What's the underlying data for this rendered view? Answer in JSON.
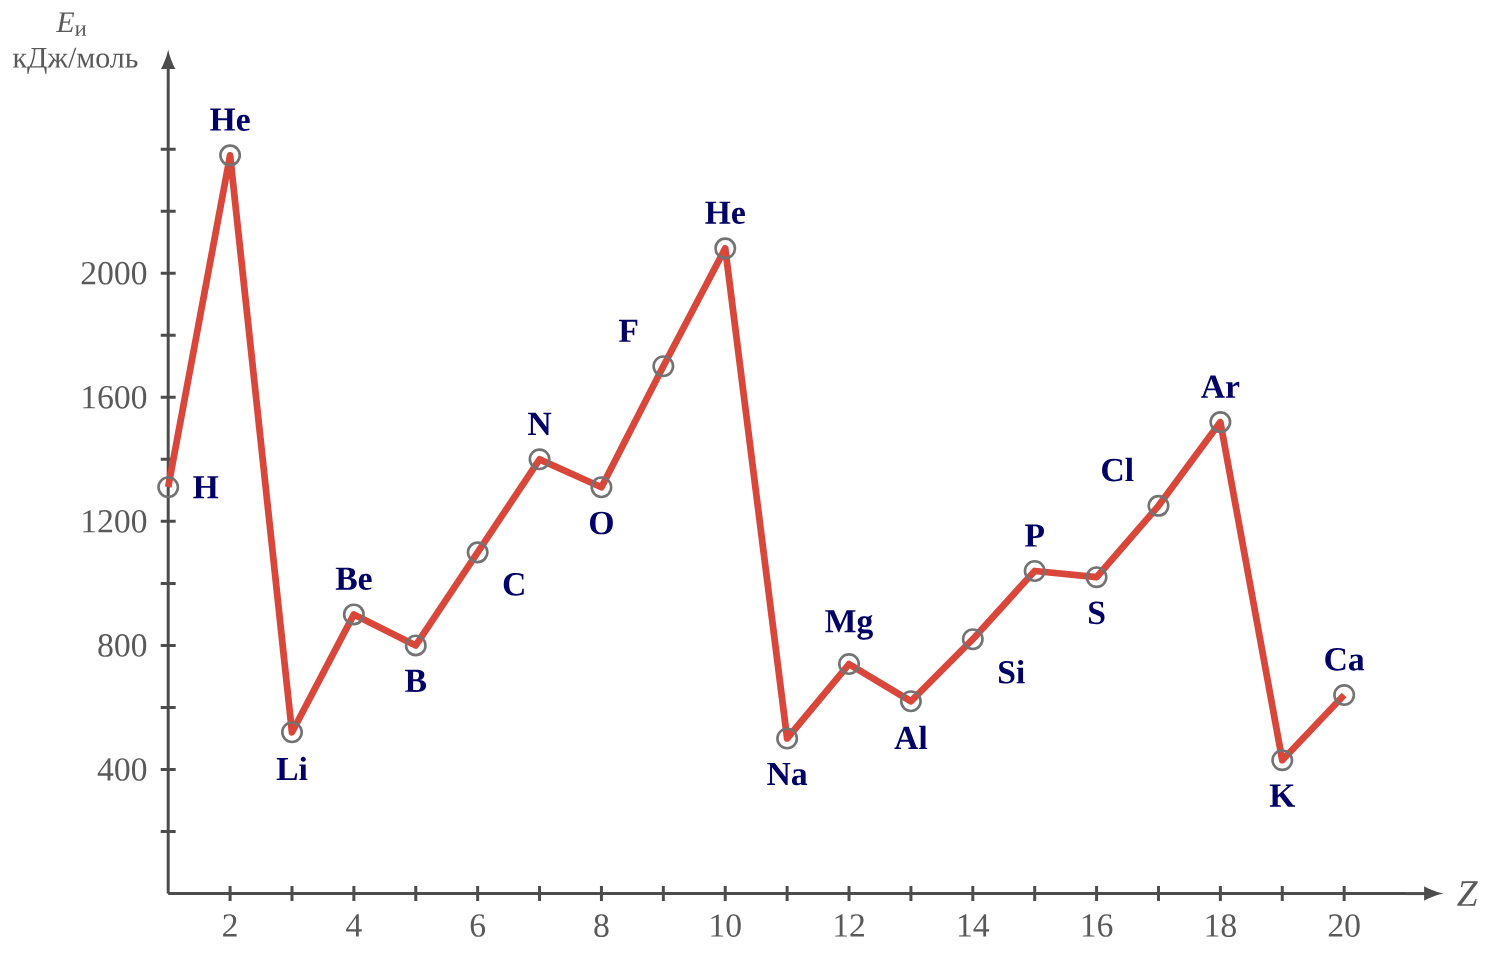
{
  "chart_data": {
    "type": "line",
    "ylabel": "*E*$_{и}$ кДж/моль",
    "xlabel": "Z",
    "x": [
      1,
      2,
      3,
      4,
      5,
      6,
      7,
      8,
      9,
      10,
      11,
      12,
      13,
      14,
      15,
      16,
      17,
      18,
      19,
      20
    ],
    "series": [
      {
        "color": "#d9463a",
        "values": [
          1310,
          2380,
          520,
          900,
          800,
          1100,
          1400,
          1310,
          1700,
          2080,
          500,
          740,
          620,
          820,
          1040,
          1020,
          1250,
          1520,
          430,
          640
        ]
      }
    ],
    "marker": "circle",
    "line_style": "solid",
    "grid": false,
    "xlim": [
      1,
      21
    ],
    "ylim": [
      0,
      2600
    ],
    "xticks": [
      2,
      {
        "value": 3,
        "label": null
      },
      4,
      {
        "value": 5,
        "label": null
      },
      6,
      {
        "value": 7,
        "label": null
      },
      8,
      {
        "value": 9,
        "label": null
      },
      10,
      {
        "value": 11,
        "label": null
      },
      12,
      {
        "value": 13,
        "label": null
      },
      14,
      {
        "value": 15,
        "label": null
      },
      16,
      {
        "value": 17,
        "label": null
      },
      18,
      {
        "value": 19,
        "label": null
      },
      20
    ],
    "yticks": [
      {
        "value": 200,
        "label": null
      },
      400,
      {
        "value": 600,
        "label": null
      },
      800,
      {
        "value": 1000,
        "label": null
      },
      1200,
      {
        "value": 1400,
        "label": null
      },
      1600,
      {
        "value": 1800,
        "label": null
      },
      2000,
      {
        "value": 2200,
        "label": null
      },
      {
        "value": 2400,
        "label": null
      }
    ],
    "annotations": [
      {
        "text": "H",
        "x": 1,
        "y": 1310
      },
      {
        "text": "He",
        "x": 2,
        "y": 2380
      },
      {
        "text": "Li",
        "x": 3,
        "y": 520
      },
      {
        "text": "Be",
        "x": 4,
        "y": 900
      },
      {
        "text": "B",
        "x": 5,
        "y": 800
      },
      {
        "text": "C",
        "x": 6,
        "y": 1100
      },
      {
        "text": "N",
        "x": 7,
        "y": 1400
      },
      {
        "text": "O",
        "x": 8,
        "y": 1310
      },
      {
        "text": "F",
        "x": 9,
        "y": 1700
      },
      {
        "text": "He",
        "x": 10,
        "y": 2080
      },
      {
        "text": "Na",
        "x": 11,
        "y": 500
      },
      {
        "text": "Mg",
        "x": 12,
        "y": 740
      },
      {
        "text": "Al",
        "x": 13,
        "y": 620
      },
      {
        "text": "Si",
        "x": 14,
        "y": 820
      },
      {
        "text": "P",
        "x": 15,
        "y": 1040
      },
      {
        "text": "S",
        "x": 16,
        "y": 1020
      },
      {
        "text": "Cl",
        "x": 17,
        "y": 1250
      },
      {
        "text": "Ar",
        "x": 18,
        "y": 1520
      },
      {
        "text": "K",
        "x": 19,
        "y": 430
      },
      {
        "text": "Ca",
        "x": 20,
        "y": 640
      }
    ]
  }
}
